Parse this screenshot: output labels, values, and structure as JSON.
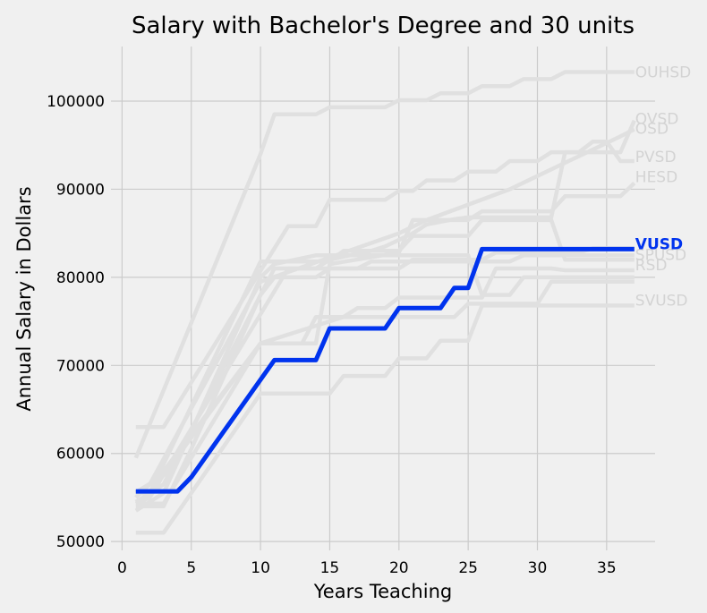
{
  "chart_data": {
    "type": "line",
    "title": "Salary with Bachelor's Degree and 30 units",
    "xlabel": "Years Teaching",
    "ylabel": "Annual Salary in Dollars",
    "xlim": [
      -0.8,
      38.5
    ],
    "ylim": [
      49000,
      106200
    ],
    "xticks": [
      0,
      5,
      10,
      15,
      20,
      25,
      30,
      35
    ],
    "yticks": [
      50000,
      60000,
      70000,
      80000,
      90000,
      100000
    ],
    "grid": true,
    "highlight_series": "VUSD",
    "colors": {
      "background": "#f0f0f0",
      "grid": "#cbcbcb",
      "muted": "#e0e0e0",
      "muted_label": "#d3d3d3",
      "highlight": "#0033ee"
    },
    "series": [
      {
        "name": "OUHSD",
        "x": [
          1,
          10,
          11,
          14,
          15,
          19,
          20,
          22,
          23,
          25,
          26,
          28,
          29,
          31,
          32,
          37
        ],
        "y": [
          59500,
          94000,
          98500,
          98500,
          99300,
          99300,
          100100,
          100100,
          100900,
          100900,
          101700,
          101700,
          102500,
          102500,
          103300,
          103300
        ]
      },
      {
        "name": "OVSD",
        "x": [
          1,
          3,
          5,
          10,
          11,
          14,
          15,
          18,
          19,
          21,
          22,
          24,
          25,
          26,
          31,
          32,
          33,
          34,
          35,
          36,
          37
        ],
        "y": [
          54000,
          54000,
          60500,
          78000,
          81000,
          81000,
          82000,
          83000,
          83500,
          85000,
          86000,
          86600,
          86800,
          86800,
          86800,
          94200,
          94200,
          94200,
          94200,
          94200,
          97800
        ]
      },
      {
        "name": "OSD",
        "x": [
          1,
          2,
          10,
          20,
          22,
          28,
          30,
          32,
          34,
          36,
          37
        ],
        "y": [
          55000,
          56500,
          79500,
          85000,
          86500,
          90000,
          91500,
          93000,
          94500,
          96000,
          96800
        ]
      },
      {
        "name": "PVSD",
        "x": [
          1,
          3,
          12,
          14,
          15,
          19,
          20,
          21,
          22,
          24,
          25,
          27,
          28,
          30,
          31,
          33,
          34,
          35,
          36,
          37
        ],
        "y": [
          63000,
          63000,
          85800,
          85800,
          88800,
          88800,
          89800,
          89800,
          91000,
          91000,
          92000,
          92000,
          93200,
          93200,
          94200,
          94200,
          95400,
          95400,
          93200,
          93200
        ]
      },
      {
        "name": "HESD",
        "x": [
          1,
          3,
          10,
          11,
          14,
          15,
          20,
          21,
          25,
          26,
          31,
          32,
          36,
          37
        ],
        "y": [
          55000,
          58000,
          72500,
          72500,
          72500,
          81500,
          82800,
          86500,
          86500,
          87500,
          87500,
          89200,
          89200,
          90700
        ]
      },
      {
        "name": "SPUSD",
        "x": [
          1,
          2,
          10,
          15,
          16,
          20,
          21,
          25,
          26,
          31,
          32,
          37
        ],
        "y": [
          55500,
          55500,
          81800,
          81800,
          83000,
          83000,
          84700,
          84700,
          86500,
          86500,
          82000,
          82000
        ]
      },
      {
        "name": "RSD",
        "x": [
          1,
          3,
          10,
          16,
          17,
          19,
          20,
          26,
          27,
          31,
          32,
          37
        ],
        "y": [
          54300,
          54300,
          72500,
          75500,
          76500,
          76500,
          77700,
          77700,
          81000,
          81000,
          80800,
          80800
        ]
      },
      {
        "name": "SVUSD",
        "x": [
          1,
          3,
          10,
          15,
          16,
          19,
          20,
          22,
          23,
          25,
          26,
          37
        ],
        "y": [
          51000,
          51000,
          66800,
          66800,
          68800,
          68800,
          70800,
          70800,
          72800,
          72800,
          76800,
          76800
        ]
      },
      {
        "name": "",
        "x": [
          1,
          3,
          10,
          13,
          14,
          24,
          25,
          30,
          31,
          37
        ],
        "y": [
          55600,
          57500,
          72500,
          72500,
          75500,
          75500,
          77000,
          77000,
          79500,
          79500
        ]
      },
      {
        "name": "",
        "x": [
          1,
          3,
          10,
          11,
          14,
          15,
          25,
          26,
          28,
          29,
          37
        ],
        "y": [
          53500,
          55500,
          80000,
          81500,
          82500,
          82500,
          82500,
          78000,
          78000,
          80000,
          80000
        ]
      },
      {
        "name": "",
        "x": [
          1,
          2,
          12,
          17,
          18,
          28,
          29,
          37
        ],
        "y": [
          54300,
          55000,
          81000,
          81000,
          81800,
          81800,
          82500,
          82500
        ]
      },
      {
        "name": "",
        "x": [
          1,
          3,
          10,
          11,
          14,
          15,
          20,
          21,
          26,
          27,
          33,
          34,
          37
        ],
        "y": [
          54500,
          56500,
          78000,
          80000,
          80000,
          81000,
          81000,
          82000,
          82000,
          82800,
          82800,
          83300,
          83300
        ]
      },
      {
        "name": "VUSD",
        "x": [
          1,
          4,
          5,
          11,
          14,
          15,
          19,
          20,
          23,
          24,
          25,
          26,
          37
        ],
        "y": [
          55700,
          55700,
          57300,
          70600,
          70600,
          74200,
          74200,
          76500,
          76500,
          78800,
          78800,
          83200,
          83200
        ]
      }
    ],
    "label_y": {
      "OUHSD": 103300,
      "OVSD": 98000,
      "OSD": 96900,
      "PVSD": 93700,
      "HESD": 91400,
      "SPUSD": 82600,
      "RSD": 81400,
      "SVUSD": 77400,
      "VUSD": 83800
    }
  }
}
